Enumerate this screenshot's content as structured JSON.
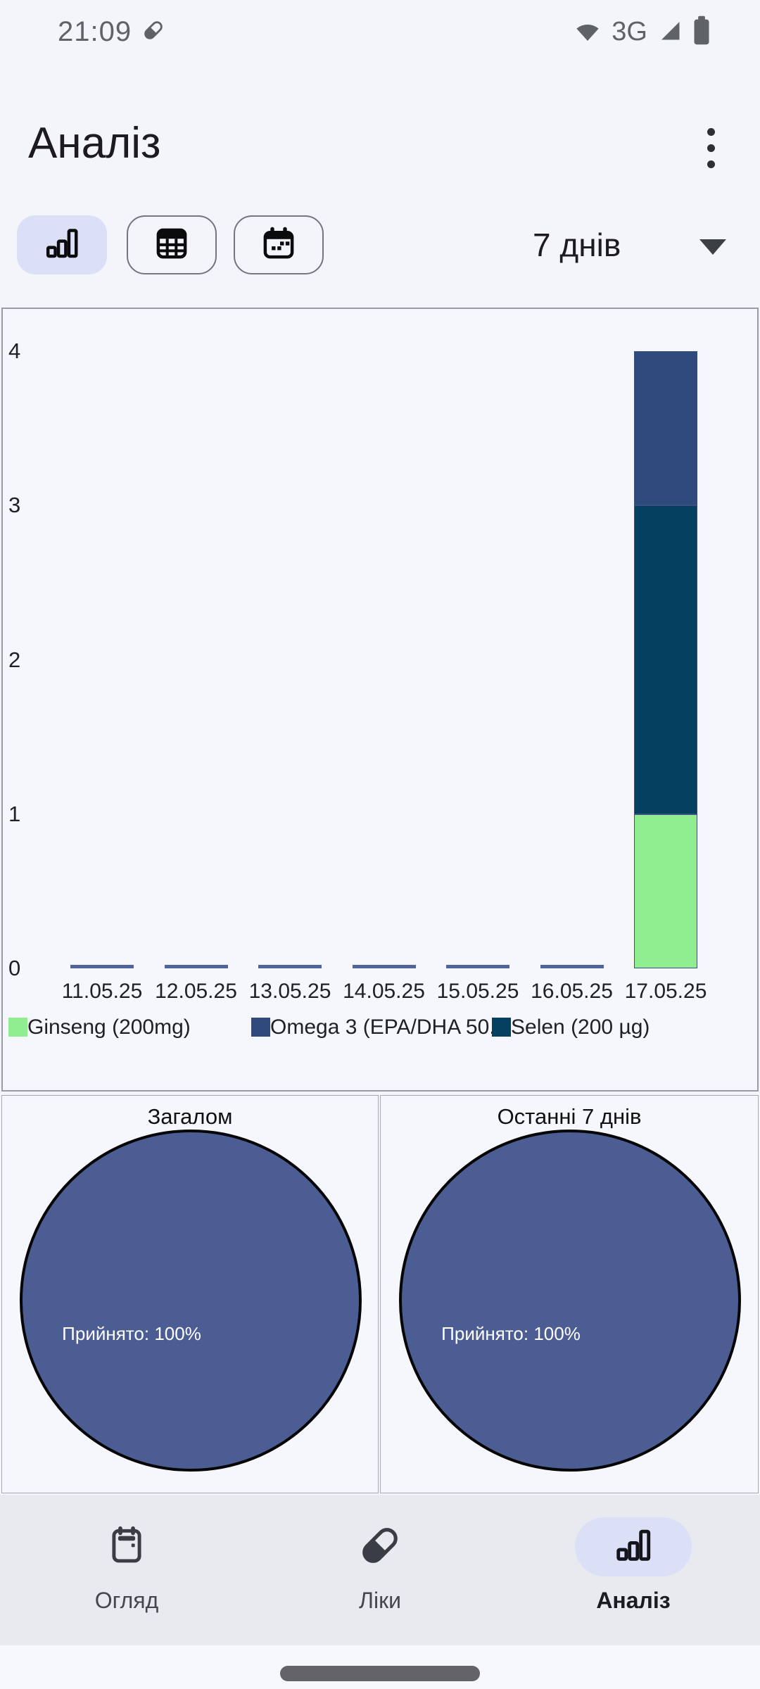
{
  "status_bar": {
    "time": "21:09",
    "network": "3G"
  },
  "header": {
    "title": "Аналіз"
  },
  "toolbar": {
    "view_toggles": [
      {
        "name": "bar-chart-view",
        "selected": true
      },
      {
        "name": "table-view",
        "selected": false
      },
      {
        "name": "calendar-view",
        "selected": false
      }
    ],
    "range_selector": {
      "value": "7 днів"
    }
  },
  "chart_data": {
    "type": "bar",
    "stacked": true,
    "categories": [
      "11.05.25",
      "12.05.25",
      "13.05.25",
      "14.05.25",
      "15.05.25",
      "16.05.25",
      "17.05.25"
    ],
    "series": [
      {
        "name": "Ginseng (200mg)",
        "color": "#90ee90",
        "values": [
          0,
          0,
          0,
          0,
          0,
          0,
          1
        ]
      },
      {
        "name": "Selen (200 µg)",
        "color": "#04405f",
        "values": [
          0,
          0,
          0,
          0,
          0,
          0,
          2
        ]
      },
      {
        "name": "Omega 3 (EPA/DHA 50...",
        "color": "#2f4a7d",
        "values": [
          0,
          0,
          0,
          0,
          0,
          0,
          1
        ]
      }
    ],
    "legend": [
      {
        "label": "Ginseng (200mg)",
        "color": "#90ee90"
      },
      {
        "label": "Omega 3 (EPA/DHA 50...",
        "color": "#2f4a7d"
      },
      {
        "label": "Selen (200 µg)",
        "color": "#04405f"
      }
    ],
    "ylim": [
      0,
      4
    ],
    "yticks": [
      0,
      1,
      2,
      3,
      4
    ],
    "zero_bar_color": "#52629b",
    "grid": false,
    "legend_position": "bottom"
  },
  "pies": [
    {
      "title": "Загалом",
      "label": "Прийнято: 100%",
      "type": "pie",
      "slices": [
        {
          "name": "Прийнято",
          "percent": 100,
          "color": "#4b5d93"
        }
      ]
    },
    {
      "title": "Останні 7 днів",
      "label": "Прийнято: 100%",
      "type": "pie",
      "slices": [
        {
          "name": "Прийнято",
          "percent": 100,
          "color": "#4b5d93"
        }
      ]
    }
  ],
  "bottom_nav": {
    "items": [
      {
        "label": "Огляд",
        "selected": false
      },
      {
        "label": "Ліки",
        "selected": false
      },
      {
        "label": "Аналіз",
        "selected": true
      }
    ]
  },
  "colors": {
    "page_bg": "#f4f4fb",
    "card_bg": "#f6f6fd",
    "accent_bg": "#dbe0f6",
    "nav_bg": "#e9e9f0",
    "status_gray": "#5f6368",
    "pie_fill": "#4b5d93"
  }
}
